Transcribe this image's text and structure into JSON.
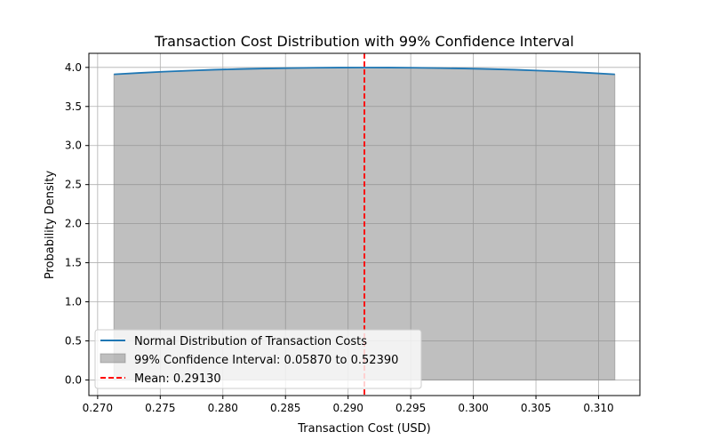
{
  "chart_data": {
    "type": "line",
    "title": "Transaction Cost Distribution with 99% Confidence Interval",
    "xlabel": "Transaction Cost (USD)",
    "ylabel": "Probability Density",
    "xlim": [
      0.2693,
      0.3133
    ],
    "ylim": [
      -0.2,
      4.18
    ],
    "x_ticks": [
      0.27,
      0.275,
      0.28,
      0.285,
      0.29,
      0.295,
      0.3,
      0.305,
      0.31
    ],
    "x_tick_labels": [
      "0.270",
      "0.275",
      "0.280",
      "0.285",
      "0.290",
      "0.295",
      "0.300",
      "0.305",
      "0.310"
    ],
    "y_ticks": [
      0.0,
      0.5,
      1.0,
      1.5,
      2.0,
      2.5,
      3.0,
      3.5,
      4.0
    ],
    "y_tick_labels": [
      "0.0",
      "0.5",
      "1.0",
      "1.5",
      "2.0",
      "2.5",
      "3.0",
      "3.5",
      "4.0"
    ],
    "grid": true,
    "legend_position": "lower-left",
    "series": [
      {
        "name": "Normal Distribution of Transaction Costs",
        "type": "line",
        "color": "#1f77b4",
        "x": [
          0.2713,
          0.2733,
          0.2753,
          0.2773,
          0.2793,
          0.2813,
          0.2833,
          0.2853,
          0.2873,
          0.2893,
          0.2913,
          0.2933,
          0.2953,
          0.2973,
          0.2993,
          0.3013,
          0.3033,
          0.3053,
          0.3073,
          0.3093,
          0.3113
        ],
        "y": [
          3.911,
          3.929,
          3.945,
          3.958,
          3.97,
          3.979,
          3.986,
          3.991,
          3.995,
          3.997,
          3.998,
          3.997,
          3.995,
          3.991,
          3.986,
          3.979,
          3.97,
          3.958,
          3.945,
          3.929,
          3.911
        ]
      },
      {
        "name": "99% Confidence Interval: 0.05870 to 0.52390",
        "type": "area",
        "color": "#808080",
        "opacity": 0.5
      },
      {
        "name": "Mean: 0.29130",
        "type": "vline",
        "x": 0.2913,
        "color": "#ff0000",
        "style": "dashed"
      }
    ]
  }
}
